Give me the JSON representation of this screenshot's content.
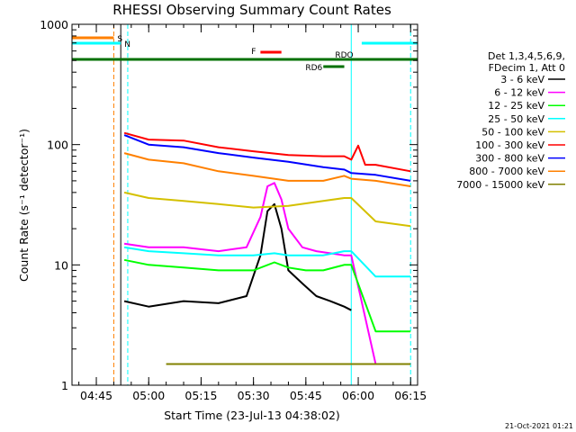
{
  "chart_data": {
    "type": "line",
    "title": "RHESSI Observing Summary Count Rates",
    "xlabel": "Start Time (23-Jul-13 04:38:02)",
    "ylabel": "Count Rate (s⁻¹ detector⁻¹)",
    "y_scale": "log",
    "ylim": [
      1,
      1000
    ],
    "xlim": [
      "04:38:02",
      "06:17:00"
    ],
    "x_ticks": [
      "04:45",
      "05:00",
      "05:15",
      "05:30",
      "05:45",
      "06:00",
      "06:15"
    ],
    "y_ticks": [
      "1",
      "10",
      "100",
      "1000"
    ],
    "legend_header": [
      "Det 1,3,4,5,6,9,",
      "FDecim 1, Att 0"
    ],
    "legend_placement": "right",
    "grid": false,
    "timestamp": "21-Oct-2021 01:21",
    "series": [
      {
        "name": "3 - 6 keV",
        "color": "#000000",
        "x": [
          "04:53",
          "05:00",
          "05:10",
          "05:20",
          "05:28",
          "05:32",
          "05:34",
          "05:36",
          "05:38",
          "05:40",
          "05:44",
          "05:48",
          "05:52",
          "05:56",
          "05:58"
        ],
        "values": [
          5,
          4.5,
          5,
          4.8,
          5.5,
          12,
          28,
          32,
          20,
          9,
          7,
          5.5,
          5,
          4.5,
          4.2
        ]
      },
      {
        "name": "6 - 12 keV",
        "color": "#ff00ff",
        "x": [
          "04:53",
          "05:00",
          "05:10",
          "05:20",
          "05:28",
          "05:32",
          "05:34",
          "05:36",
          "05:38",
          "05:40",
          "05:44",
          "05:48",
          "05:52",
          "05:56",
          "05:58",
          "06:05",
          "06:15"
        ],
        "values": [
          15,
          14,
          14,
          13,
          14,
          25,
          45,
          48,
          35,
          20,
          14,
          13,
          12.5,
          12,
          12,
          1.5,
          1.5
        ]
      },
      {
        "name": "12 - 25 keV",
        "color": "#00ff00",
        "x": [
          "04:53",
          "05:00",
          "05:10",
          "05:20",
          "05:30",
          "05:36",
          "05:40",
          "05:45",
          "05:50",
          "05:56",
          "05:58",
          "06:05",
          "06:15"
        ],
        "values": [
          11,
          10,
          9.5,
          9,
          9,
          10.5,
          9.5,
          9,
          9,
          10,
          10,
          2.8,
          2.8
        ]
      },
      {
        "name": "25 - 50 keV",
        "color": "#00ffff",
        "x": [
          "04:53",
          "05:00",
          "05:10",
          "05:20",
          "05:30",
          "05:36",
          "05:40",
          "05:45",
          "05:50",
          "05:56",
          "05:58",
          "06:05",
          "06:15"
        ],
        "values": [
          14,
          13,
          12.5,
          12,
          12,
          12.5,
          12,
          12,
          12,
          13,
          13,
          8,
          8
        ]
      },
      {
        "name": "50 - 100 keV",
        "color": "#d4c000",
        "x": [
          "04:53",
          "05:00",
          "05:10",
          "05:20",
          "05:30",
          "05:40",
          "05:50",
          "05:56",
          "05:58",
          "06:05",
          "06:15"
        ],
        "values": [
          40,
          36,
          34,
          32,
          30,
          31,
          34,
          36,
          36,
          23,
          21
        ]
      },
      {
        "name": "100 - 300 keV",
        "color": "#ff0000",
        "x": [
          "04:53",
          "05:00",
          "05:10",
          "05:20",
          "05:30",
          "05:40",
          "05:50",
          "05:56",
          "05:58",
          "06:00",
          "06:02",
          "06:05",
          "06:15"
        ],
        "values": [
          125,
          110,
          108,
          95,
          88,
          82,
          80,
          80,
          75,
          98,
          68,
          68,
          60
        ]
      },
      {
        "name": "300 - 800 keV",
        "color": "#0000ff",
        "x": [
          "04:53",
          "05:00",
          "05:10",
          "05:20",
          "05:30",
          "05:40",
          "05:50",
          "05:56",
          "05:58",
          "06:05",
          "06:15"
        ],
        "values": [
          120,
          100,
          95,
          85,
          78,
          72,
          65,
          62,
          58,
          56,
          50
        ]
      },
      {
        "name": "800 - 7000 keV",
        "color": "#ff8000",
        "x": [
          "04:53",
          "05:00",
          "05:10",
          "05:20",
          "05:30",
          "05:40",
          "05:50",
          "05:56",
          "05:58",
          "06:05",
          "06:15"
        ],
        "values": [
          85,
          75,
          70,
          60,
          55,
          50,
          50,
          55,
          52,
          50,
          45
        ]
      },
      {
        "name": "7000 - 15000 keV",
        "color": "#808000",
        "x": [
          "05:05",
          "05:15",
          "05:25",
          "05:35",
          "05:45",
          "05:56",
          "06:05",
          "06:15"
        ],
        "values": [
          1.5,
          1.5,
          1.5,
          1.5,
          1.5,
          1.5,
          1.5,
          1.5
        ]
      }
    ],
    "annotations": [
      {
        "label": "S",
        "color": "#ff8000",
        "x_start": "04:38:02",
        "x_end": "04:50"
      },
      {
        "label": "N",
        "color": "#00ffff",
        "x_start": "04:38:02",
        "x_end": "04:52"
      },
      {
        "label": "N",
        "color": "#00ffff",
        "x_start": "06:01",
        "x_end": "06:17"
      },
      {
        "label": "F",
        "color": "#ff0000",
        "x_start": "05:32",
        "x_end": "05:38"
      },
      {
        "label": "RDO",
        "color": "#007000",
        "x_start": "04:38:02",
        "x_end": "06:17"
      },
      {
        "label": "RD6",
        "color": "#007000",
        "x_start": "05:50",
        "x_end": "05:56"
      }
    ],
    "markers": [
      {
        "x": "04:50",
        "color": "#ff8000",
        "style": "dashed"
      },
      {
        "x": "04:52",
        "color": "#000000",
        "style": "solid"
      },
      {
        "x": "04:54",
        "color": "#00ffff",
        "style": "dashed"
      },
      {
        "x": "05:58",
        "color": "#00ffff",
        "style": "solid"
      },
      {
        "x": "06:15",
        "color": "#00ffff",
        "style": "dashed"
      }
    ]
  }
}
